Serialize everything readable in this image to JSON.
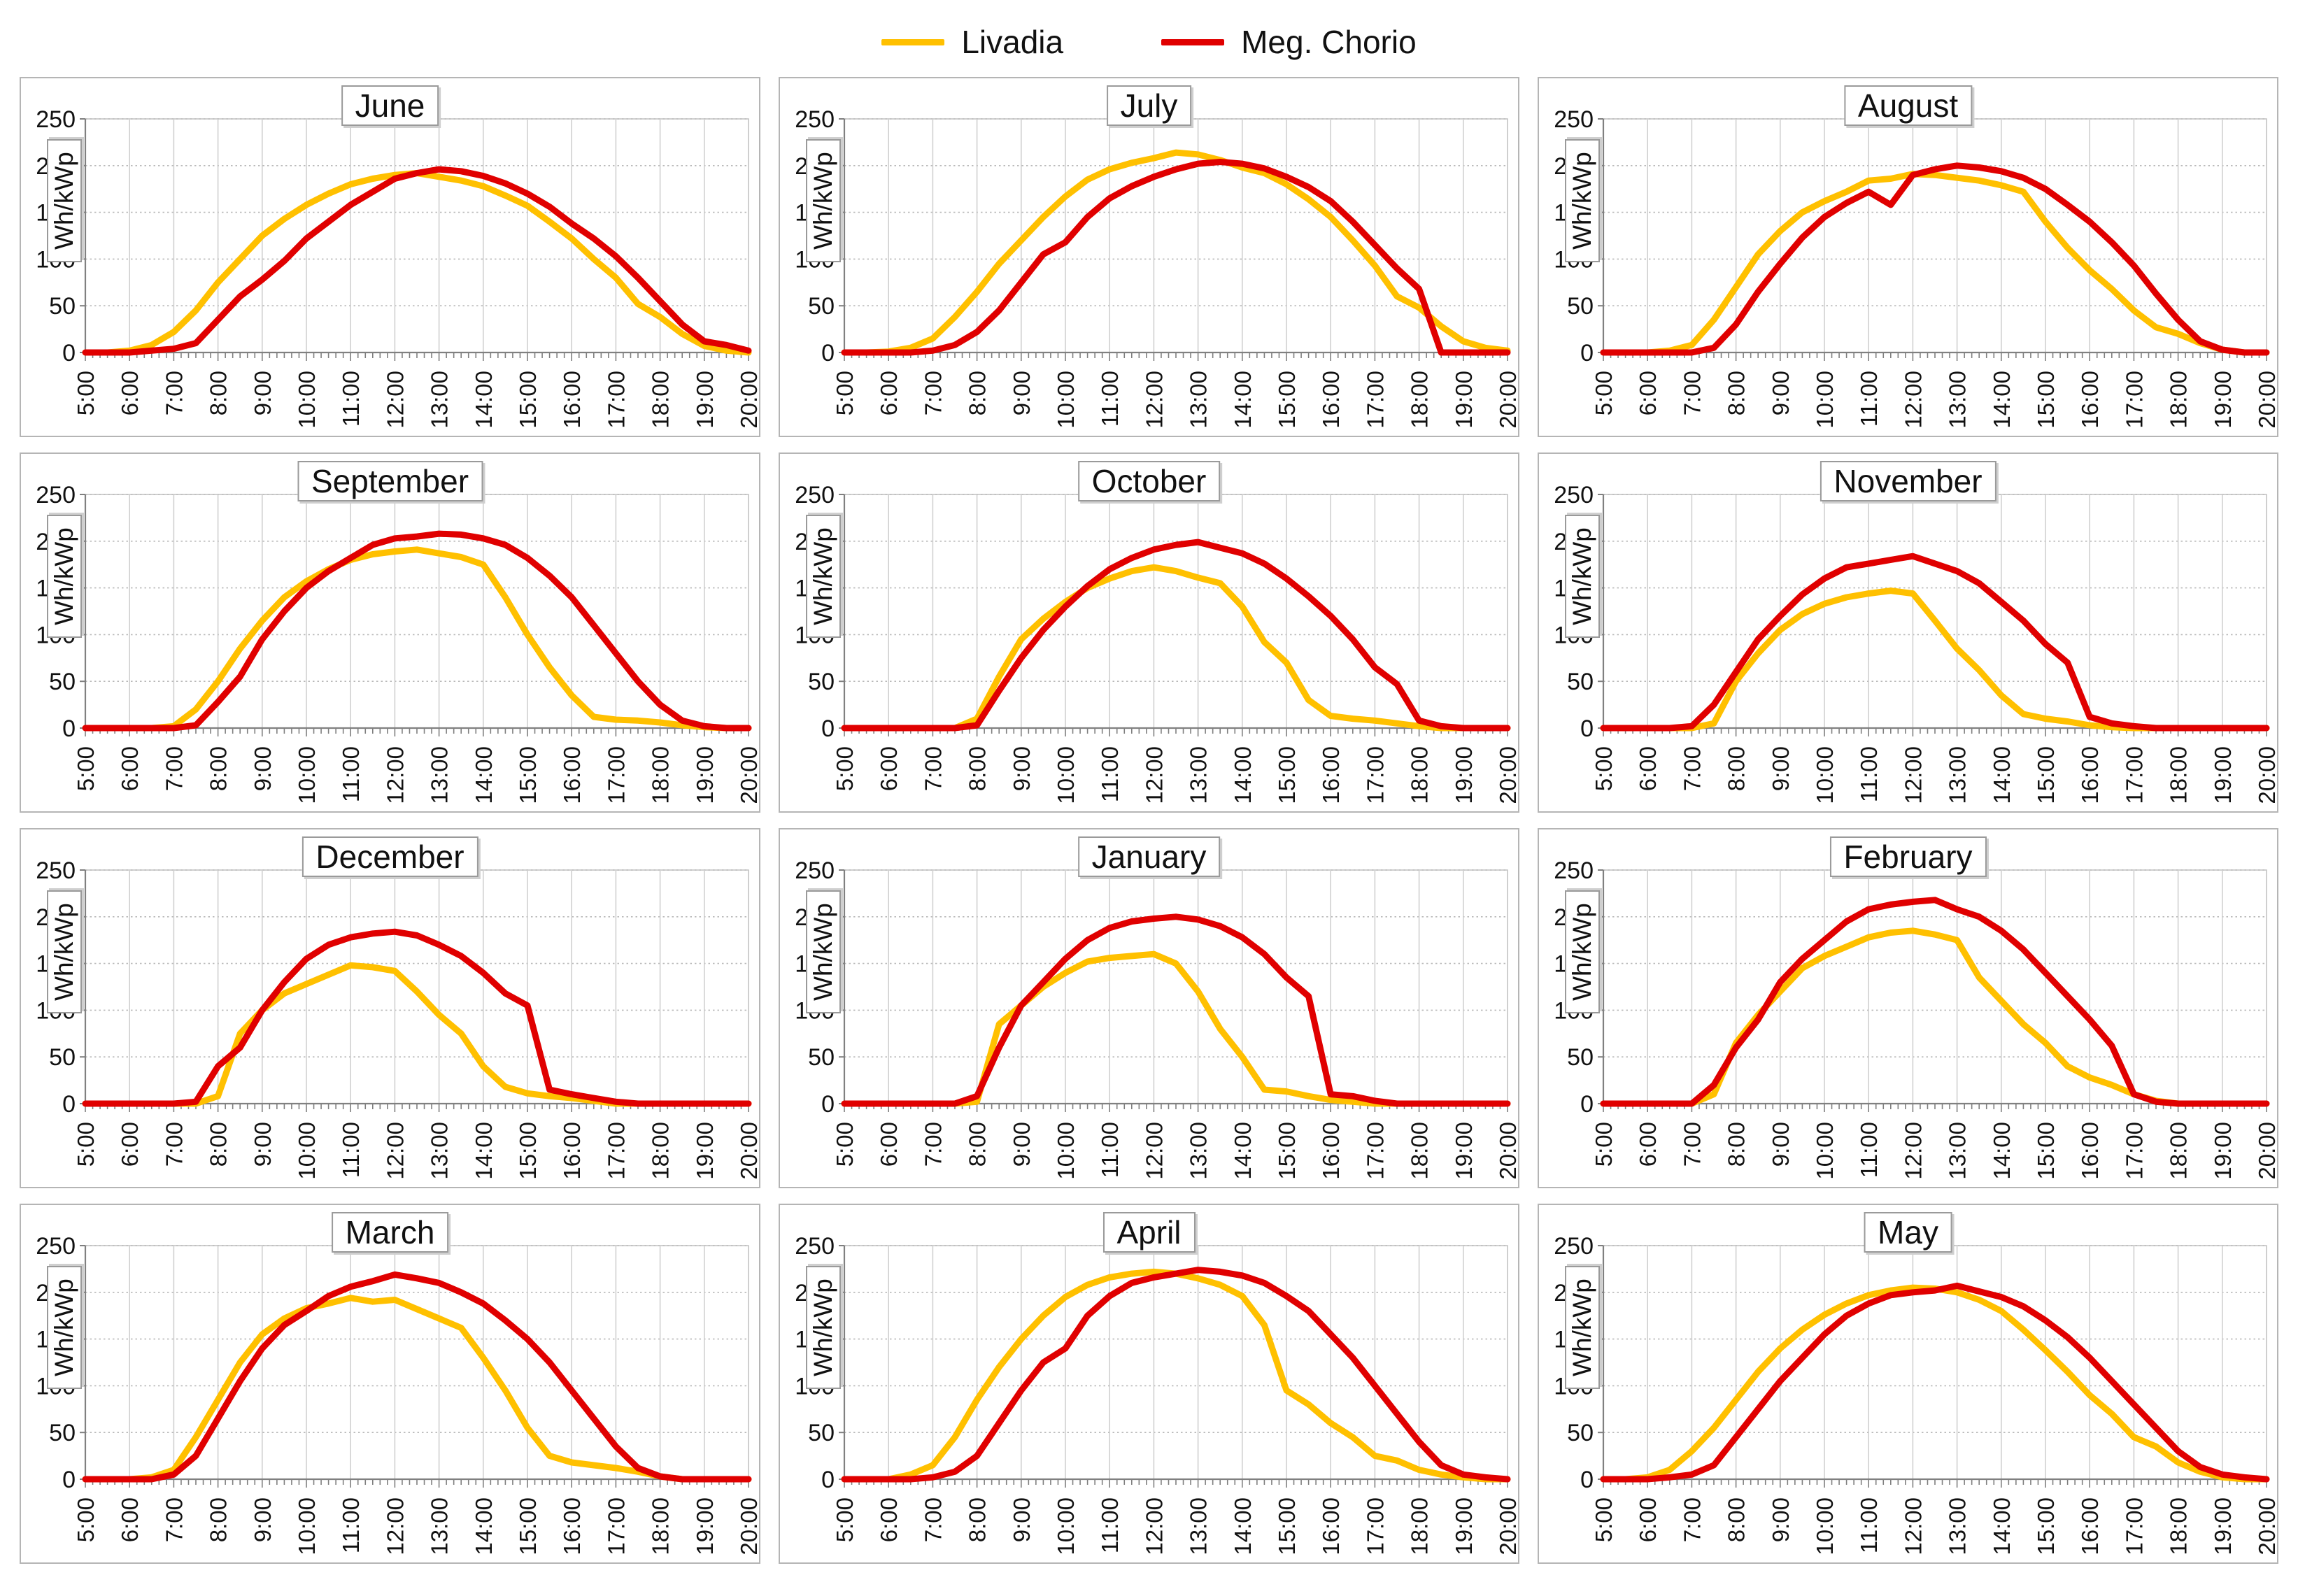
{
  "legend": {
    "items": [
      {
        "label": "Livadia",
        "color": "#FFC000"
      },
      {
        "label": "Meg. Chorio",
        "color": "#E00000"
      }
    ]
  },
  "axes": {
    "y_label": "Wh/kWp",
    "y_ticks": [
      0,
      50,
      100,
      150,
      200,
      250
    ],
    "y_max": 250,
    "x_tick_labels": [
      "5:00",
      "6:00",
      "7:00",
      "8:00",
      "9:00",
      "10:00",
      "11:00",
      "12:00",
      "13:00",
      "14:00",
      "15:00",
      "16:00",
      "17:00",
      "18:00",
      "19:00",
      "20:00"
    ],
    "x_start": "5:00",
    "x_end": "20:00",
    "sample_interval_minutes": 30,
    "grid": true,
    "legend_position": "top-center"
  },
  "chart_data": [
    {
      "type": "line",
      "title": "June",
      "xlabel": "",
      "ylabel": "Wh/kWp",
      "ylim": [
        0,
        250
      ],
      "series": [
        {
          "name": "Livadia",
          "values": [
            0,
            0,
            2,
            8,
            22,
            45,
            75,
            100,
            125,
            143,
            158,
            170,
            180,
            186,
            190,
            192,
            188,
            184,
            178,
            168,
            157,
            140,
            122,
            100,
            80,
            52,
            38,
            20,
            7,
            2,
            0
          ]
        },
        {
          "name": "Meg. Chorio",
          "values": [
            0,
            0,
            0,
            2,
            4,
            10,
            35,
            60,
            78,
            98,
            122,
            140,
            158,
            172,
            186,
            192,
            196,
            194,
            189,
            181,
            170,
            156,
            138,
            122,
            103,
            80,
            55,
            30,
            12,
            8,
            2
          ]
        }
      ]
    },
    {
      "type": "line",
      "title": "July",
      "xlabel": "",
      "ylabel": "Wh/kWp",
      "ylim": [
        0,
        250
      ],
      "series": [
        {
          "name": "Livadia",
          "values": [
            0,
            0,
            1,
            5,
            15,
            38,
            65,
            95,
            120,
            145,
            167,
            185,
            196,
            203,
            208,
            214,
            212,
            206,
            198,
            192,
            180,
            164,
            145,
            120,
            93,
            60,
            48,
            28,
            12,
            5,
            2
          ]
        },
        {
          "name": "Meg. Chorio",
          "values": [
            0,
            0,
            0,
            0,
            2,
            8,
            22,
            45,
            75,
            105,
            118,
            145,
            165,
            178,
            188,
            196,
            202,
            204,
            202,
            197,
            188,
            177,
            162,
            140,
            115,
            90,
            68,
            0,
            0,
            0,
            0
          ]
        }
      ]
    },
    {
      "type": "line",
      "title": "August",
      "xlabel": "",
      "ylabel": "Wh/kWp",
      "ylim": [
        0,
        250
      ],
      "series": [
        {
          "name": "Livadia",
          "values": [
            0,
            0,
            0,
            2,
            8,
            35,
            70,
            105,
            130,
            150,
            162,
            172,
            184,
            186,
            191,
            190,
            187,
            184,
            179,
            172,
            140,
            112,
            88,
            68,
            45,
            27,
            20,
            10,
            3,
            0,
            0
          ]
        },
        {
          "name": "Meg. Chorio",
          "values": [
            0,
            0,
            0,
            0,
            0,
            5,
            30,
            65,
            95,
            123,
            145,
            160,
            172,
            158,
            190,
            196,
            200,
            198,
            194,
            187,
            175,
            158,
            140,
            118,
            93,
            63,
            35,
            12,
            3,
            0,
            0
          ]
        }
      ]
    },
    {
      "type": "line",
      "title": "September",
      "xlabel": "",
      "ylabel": "Wh/kWp",
      "ylim": [
        0,
        250
      ],
      "series": [
        {
          "name": "Livadia",
          "values": [
            0,
            0,
            0,
            0,
            2,
            20,
            50,
            85,
            115,
            140,
            157,
            170,
            180,
            186,
            189,
            191,
            187,
            183,
            175,
            140,
            100,
            65,
            35,
            12,
            9,
            8,
            6,
            3,
            1,
            0,
            0
          ]
        },
        {
          "name": "Meg. Chorio",
          "values": [
            0,
            0,
            0,
            0,
            0,
            3,
            28,
            55,
            95,
            125,
            150,
            168,
            182,
            196,
            203,
            205,
            208,
            207,
            203,
            196,
            182,
            163,
            140,
            110,
            80,
            50,
            25,
            8,
            2,
            0,
            0
          ]
        }
      ]
    },
    {
      "type": "line",
      "title": "October",
      "xlabel": "",
      "ylabel": "Wh/kWp",
      "ylim": [
        0,
        250
      ],
      "series": [
        {
          "name": "Livadia",
          "values": [
            0,
            0,
            0,
            0,
            0,
            0,
            10,
            55,
            95,
            117,
            135,
            150,
            160,
            168,
            172,
            168,
            161,
            155,
            130,
            92,
            70,
            30,
            13,
            10,
            8,
            5,
            2,
            0,
            0,
            0,
            0
          ]
        },
        {
          "name": "Meg. Chorio",
          "values": [
            0,
            0,
            0,
            0,
            0,
            0,
            3,
            40,
            75,
            105,
            130,
            152,
            170,
            182,
            191,
            196,
            199,
            193,
            187,
            176,
            160,
            141,
            120,
            95,
            65,
            47,
            8,
            2,
            0,
            0,
            0
          ]
        }
      ]
    },
    {
      "type": "line",
      "title": "November",
      "xlabel": "",
      "ylabel": "Wh/kWp",
      "ylim": [
        0,
        250
      ],
      "series": [
        {
          "name": "Livadia",
          "values": [
            0,
            0,
            0,
            0,
            0,
            5,
            50,
            80,
            105,
            122,
            133,
            140,
            144,
            147,
            144,
            115,
            85,
            62,
            35,
            15,
            10,
            7,
            3,
            1,
            0,
            0,
            0,
            0,
            0,
            0,
            0
          ]
        },
        {
          "name": "Meg. Chorio",
          "values": [
            0,
            0,
            0,
            0,
            2,
            25,
            60,
            95,
            120,
            143,
            160,
            172,
            176,
            180,
            184,
            176,
            168,
            155,
            135,
            115,
            90,
            70,
            12,
            5,
            2,
            0,
            0,
            0,
            0,
            0,
            0
          ]
        }
      ]
    },
    {
      "type": "line",
      "title": "December",
      "xlabel": "",
      "ylabel": "Wh/kWp",
      "ylim": [
        0,
        250
      ],
      "series": [
        {
          "name": "Livadia",
          "values": [
            0,
            0,
            0,
            0,
            0,
            0,
            8,
            75,
            100,
            118,
            128,
            138,
            148,
            146,
            142,
            120,
            95,
            75,
            40,
            18,
            11,
            8,
            6,
            3,
            0,
            0,
            0,
            0,
            0,
            0,
            0
          ]
        },
        {
          "name": "Meg. Chorio",
          "values": [
            0,
            0,
            0,
            0,
            0,
            2,
            40,
            60,
            100,
            130,
            155,
            170,
            178,
            182,
            184,
            180,
            170,
            158,
            140,
            118,
            105,
            15,
            10,
            6,
            2,
            0,
            0,
            0,
            0,
            0,
            0
          ]
        }
      ]
    },
    {
      "type": "line",
      "title": "January",
      "xlabel": "",
      "ylabel": "Wh/kWp",
      "ylim": [
        0,
        250
      ],
      "series": [
        {
          "name": "Livadia",
          "values": [
            0,
            0,
            0,
            0,
            0,
            0,
            2,
            85,
            105,
            125,
            140,
            152,
            156,
            158,
            160,
            150,
            120,
            80,
            50,
            15,
            13,
            8,
            4,
            2,
            0,
            0,
            0,
            0,
            0,
            0,
            0
          ]
        },
        {
          "name": "Meg. Chorio",
          "values": [
            0,
            0,
            0,
            0,
            0,
            0,
            8,
            60,
            105,
            130,
            155,
            175,
            188,
            195,
            198,
            200,
            197,
            190,
            178,
            160,
            135,
            115,
            10,
            8,
            3,
            0,
            0,
            0,
            0,
            0,
            0
          ]
        }
      ]
    },
    {
      "type": "line",
      "title": "February",
      "xlabel": "",
      "ylabel": "Wh/kWp",
      "ylim": [
        0,
        250
      ],
      "series": [
        {
          "name": "Livadia",
          "values": [
            0,
            0,
            0,
            0,
            0,
            10,
            65,
            95,
            120,
            145,
            158,
            168,
            178,
            183,
            185,
            181,
            175,
            135,
            110,
            85,
            65,
            40,
            28,
            20,
            10,
            3,
            0,
            0,
            0,
            0,
            0
          ]
        },
        {
          "name": "Meg. Chorio",
          "values": [
            0,
            0,
            0,
            0,
            0,
            20,
            60,
            90,
            130,
            155,
            175,
            195,
            208,
            213,
            216,
            218,
            208,
            200,
            185,
            165,
            140,
            115,
            90,
            62,
            10,
            2,
            0,
            0,
            0,
            0,
            0
          ]
        }
      ]
    },
    {
      "type": "line",
      "title": "March",
      "xlabel": "",
      "ylabel": "Wh/kWp",
      "ylim": [
        0,
        250
      ],
      "series": [
        {
          "name": "Livadia",
          "values": [
            0,
            0,
            0,
            2,
            10,
            45,
            85,
            125,
            155,
            172,
            183,
            188,
            194,
            190,
            192,
            182,
            172,
            162,
            130,
            95,
            55,
            25,
            18,
            15,
            12,
            8,
            3,
            0,
            0,
            0,
            0
          ]
        },
        {
          "name": "Meg. Chorio",
          "values": [
            0,
            0,
            0,
            0,
            5,
            25,
            65,
            105,
            140,
            165,
            180,
            196,
            206,
            212,
            219,
            215,
            210,
            200,
            188,
            170,
            150,
            125,
            95,
            65,
            35,
            12,
            3,
            0,
            0,
            0,
            0
          ]
        }
      ]
    },
    {
      "type": "line",
      "title": "April",
      "xlabel": "",
      "ylabel": "Wh/kWp",
      "ylim": [
        0,
        250
      ],
      "series": [
        {
          "name": "Livadia",
          "values": [
            0,
            0,
            0,
            5,
            15,
            45,
            85,
            120,
            150,
            175,
            195,
            208,
            216,
            220,
            222,
            220,
            215,
            208,
            196,
            165,
            95,
            80,
            60,
            45,
            25,
            20,
            10,
            5,
            2,
            0,
            0
          ]
        },
        {
          "name": "Meg. Chorio",
          "values": [
            0,
            0,
            0,
            0,
            2,
            8,
            25,
            60,
            95,
            125,
            140,
            175,
            196,
            210,
            216,
            220,
            224,
            222,
            218,
            210,
            196,
            180,
            155,
            130,
            100,
            70,
            40,
            15,
            5,
            2,
            0
          ]
        }
      ]
    },
    {
      "type": "line",
      "title": "May",
      "xlabel": "",
      "ylabel": "Wh/kWp",
      "ylim": [
        0,
        250
      ],
      "series": [
        {
          "name": "Livadia",
          "values": [
            0,
            0,
            2,
            10,
            30,
            55,
            85,
            115,
            140,
            160,
            176,
            188,
            197,
            202,
            205,
            204,
            200,
            192,
            180,
            160,
            138,
            115,
            90,
            70,
            45,
            35,
            18,
            8,
            2,
            0,
            0
          ]
        },
        {
          "name": "Meg. Chorio",
          "values": [
            0,
            0,
            0,
            2,
            5,
            15,
            45,
            75,
            105,
            130,
            155,
            175,
            188,
            197,
            200,
            202,
            207,
            201,
            195,
            185,
            170,
            152,
            130,
            105,
            80,
            55,
            30,
            13,
            5,
            2,
            0
          ]
        }
      ]
    }
  ]
}
